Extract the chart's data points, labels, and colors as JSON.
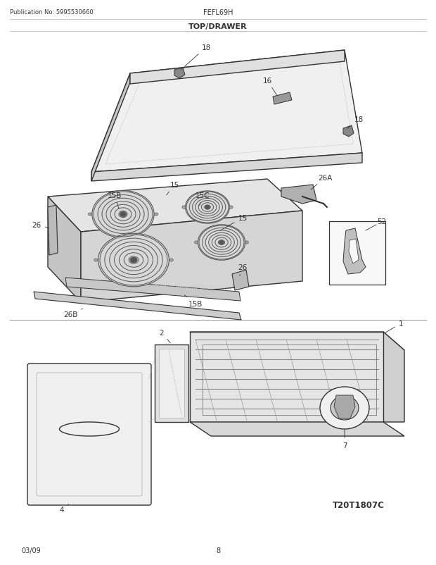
{
  "title": "TOP/DRAWER",
  "pub_no": "Publication No: 5995530660",
  "model": "FEFL69H",
  "date": "03/09",
  "page": "8",
  "diagram_ref": "T20T1807C",
  "bg_color": "#ffffff",
  "line_color": "#333333",
  "watermark": "eReplacementParts.com"
}
